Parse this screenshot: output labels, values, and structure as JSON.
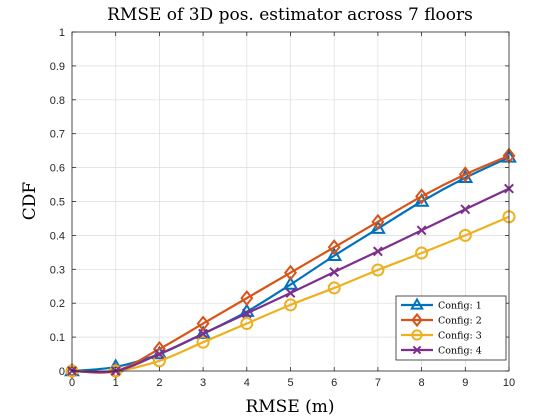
{
  "chart_data": {
    "type": "line",
    "title": "RMSE of 3D pos. estimator across 7 floors",
    "xlabel": "RMSE (m)",
    "ylabel": "CDF",
    "xlim": [
      0,
      10
    ],
    "ylim": [
      0,
      1
    ],
    "x_ticks": [
      "0",
      "1",
      "2",
      "3",
      "4",
      "5",
      "6",
      "7",
      "8",
      "9",
      "10"
    ],
    "y_ticks": [
      "0",
      "0.1",
      "0.2",
      "0.3",
      "0.4",
      "0.5",
      "0.6",
      "0.7",
      "0.8",
      "0.9",
      "1"
    ],
    "grid": true,
    "legend_position": "bottom-right",
    "x": [
      0,
      1,
      2,
      3,
      4,
      5,
      6,
      7,
      8,
      9,
      10
    ],
    "series": [
      {
        "name": "Config: 1",
        "color": "#0072BD",
        "marker": "triangle",
        "values": [
          0.0,
          0.012,
          0.05,
          0.11,
          0.175,
          0.255,
          0.34,
          0.42,
          0.5,
          0.57,
          0.63
        ]
      },
      {
        "name": "Config: 2",
        "color": "#D95319",
        "marker": "diamond",
        "values": [
          0.0,
          0.0,
          0.065,
          0.14,
          0.215,
          0.29,
          0.365,
          0.44,
          0.515,
          0.58,
          0.635
        ]
      },
      {
        "name": "Config: 3",
        "color": "#EDB120",
        "marker": "circle",
        "values": [
          0.0,
          0.0,
          0.03,
          0.085,
          0.14,
          0.195,
          0.245,
          0.298,
          0.348,
          0.4,
          0.455
        ]
      },
      {
        "name": "Config: 4",
        "color": "#7E2F8E",
        "marker": "x",
        "values": [
          0.0,
          0.0,
          0.05,
          0.11,
          0.17,
          0.23,
          0.292,
          0.353,
          0.415,
          0.477,
          0.538
        ]
      }
    ]
  }
}
